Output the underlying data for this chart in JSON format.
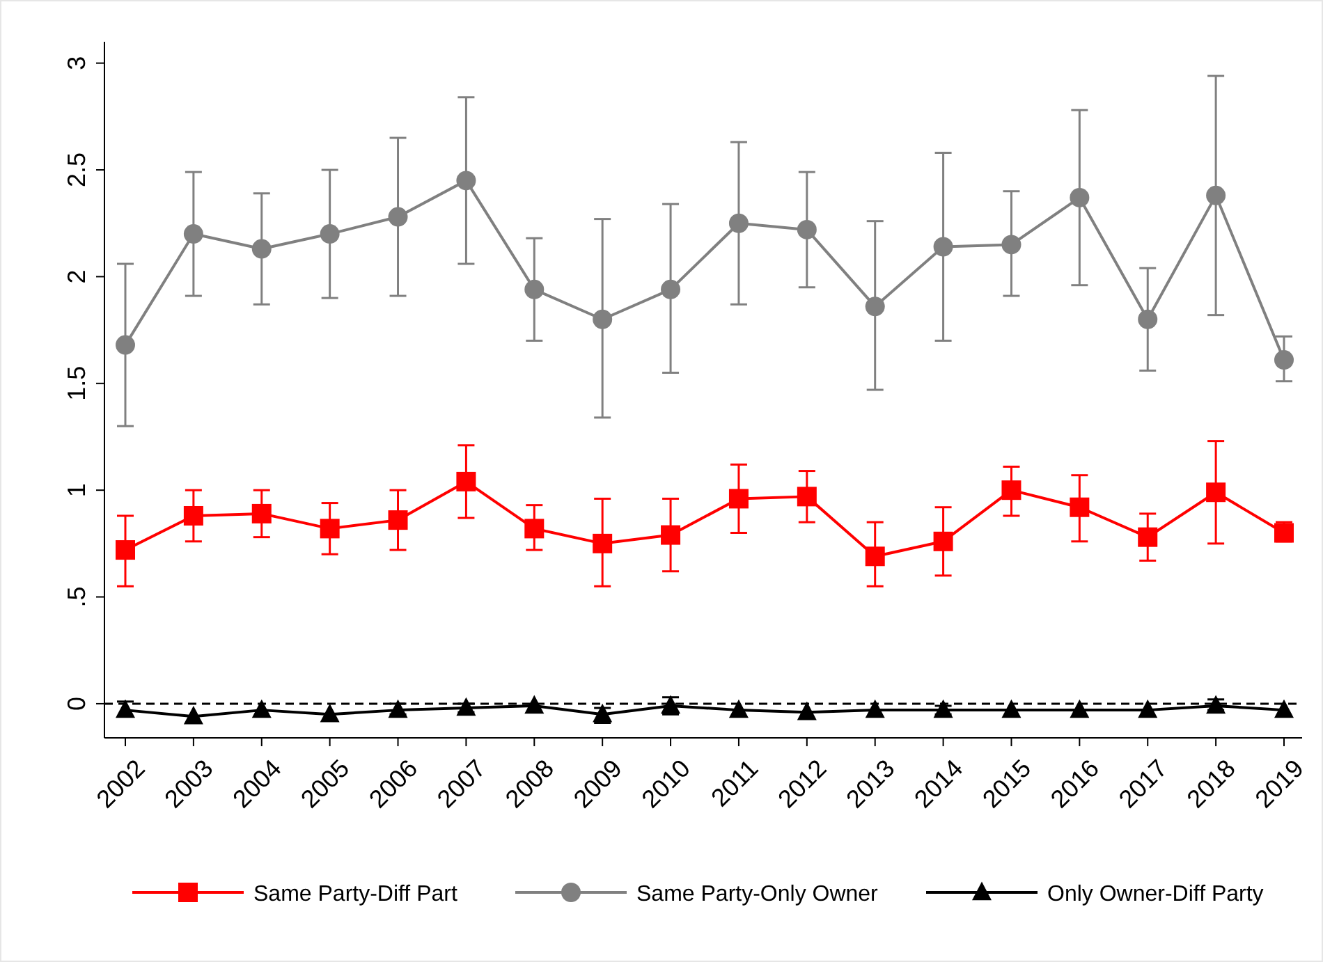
{
  "chart_data": {
    "type": "line",
    "categories": [
      "2002",
      "2003",
      "2004",
      "2005",
      "2006",
      "2007",
      "2008",
      "2009",
      "2010",
      "2011",
      "2012",
      "2013",
      "2014",
      "2015",
      "2016",
      "2017",
      "2018",
      "2019"
    ],
    "ylim": [
      -0.16,
      3.1
    ],
    "yticks": [
      {
        "value": 0,
        "label": "0"
      },
      {
        "value": 0.5,
        "label": ".5"
      },
      {
        "value": 1,
        "label": "1"
      },
      {
        "value": 1.5,
        "label": "1.5"
      },
      {
        "value": 2,
        "label": "2"
      },
      {
        "value": 2.5,
        "label": "2.5"
      },
      {
        "value": 3,
        "label": "3"
      }
    ],
    "grid": false,
    "legend": "bottom",
    "line_style": "solid",
    "ref_lines": [
      {
        "axis": "y",
        "value": 0,
        "color": "#000000",
        "line_style": "dashed"
      }
    ],
    "series": [
      {
        "name": "Same Party-Diff Part",
        "color": "#ff0000",
        "marker": "square",
        "values": [
          0.72,
          0.88,
          0.89,
          0.82,
          0.86,
          1.04,
          0.82,
          0.75,
          0.79,
          0.96,
          0.97,
          0.69,
          0.76,
          1.0,
          0.92,
          0.78,
          0.99,
          0.8
        ],
        "errors": [
          [
            0.55,
            0.88
          ],
          [
            0.76,
            1.0
          ],
          [
            0.78,
            1.0
          ],
          [
            0.7,
            0.94
          ],
          [
            0.72,
            1.0
          ],
          [
            0.87,
            1.21
          ],
          [
            0.72,
            0.93
          ],
          [
            0.55,
            0.96
          ],
          [
            0.62,
            0.96
          ],
          [
            0.8,
            1.12
          ],
          [
            0.85,
            1.09
          ],
          [
            0.55,
            0.85
          ],
          [
            0.6,
            0.92
          ],
          [
            0.88,
            1.11
          ],
          [
            0.76,
            1.07
          ],
          [
            0.67,
            0.89
          ],
          [
            0.75,
            1.23
          ],
          [
            0.76,
            0.85
          ]
        ]
      },
      {
        "name": "Same Party-Only Owner",
        "color": "#808080",
        "marker": "circle",
        "values": [
          1.68,
          2.2,
          2.13,
          2.2,
          2.28,
          2.45,
          1.94,
          1.8,
          1.94,
          2.25,
          2.22,
          1.86,
          2.14,
          2.15,
          2.37,
          1.8,
          2.38,
          1.61
        ],
        "errors": [
          [
            1.3,
            2.06
          ],
          [
            1.91,
            2.49
          ],
          [
            1.87,
            2.39
          ],
          [
            1.9,
            2.5
          ],
          [
            1.91,
            2.65
          ],
          [
            2.06,
            2.84
          ],
          [
            1.7,
            2.18
          ],
          [
            1.34,
            2.27
          ],
          [
            1.55,
            2.34
          ],
          [
            1.87,
            2.63
          ],
          [
            1.95,
            2.49
          ],
          [
            1.47,
            2.26
          ],
          [
            1.7,
            2.58
          ],
          [
            1.91,
            2.4
          ],
          [
            1.96,
            2.78
          ],
          [
            1.56,
            2.04
          ],
          [
            1.82,
            2.94
          ],
          [
            1.51,
            1.72
          ]
        ]
      },
      {
        "name": "Only Owner-Diff Party",
        "color": "#000000",
        "marker": "triangle",
        "values": [
          -0.03,
          -0.06,
          -0.03,
          -0.05,
          -0.03,
          -0.02,
          -0.01,
          -0.05,
          -0.01,
          -0.03,
          -0.04,
          -0.03,
          -0.03,
          -0.03,
          -0.03,
          -0.03,
          -0.01,
          -0.03
        ],
        "errors": [
          [
            -0.06,
            0.01
          ],
          null,
          null,
          null,
          [
            -0.05,
            0.0
          ],
          [
            -0.04,
            0.0
          ],
          null,
          [
            -0.09,
            -0.02
          ],
          [
            -0.05,
            0.03
          ],
          null,
          null,
          null,
          [
            -0.05,
            -0.01
          ],
          null,
          null,
          null,
          [
            -0.03,
            0.02
          ],
          null
        ]
      }
    ]
  }
}
